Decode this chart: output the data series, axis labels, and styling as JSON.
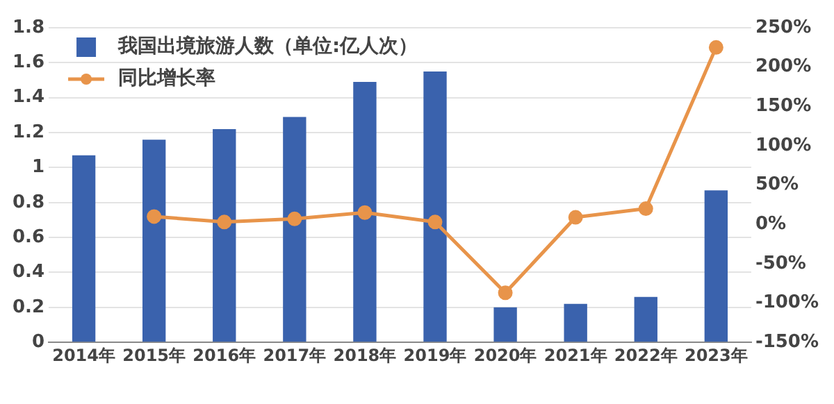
{
  "chart_data": {
    "type": "bar",
    "categories": [
      "2014年",
      "2015年",
      "2016年",
      "2017年",
      "2018年",
      "2019年",
      "2020年",
      "2021年",
      "2022年",
      "2023年"
    ],
    "series": [
      {
        "name": "我国出境旅游人数（单位:亿人次）",
        "color": "#3a62ad",
        "values": [
          1.07,
          1.16,
          1.22,
          1.29,
          1.49,
          1.55,
          0.2,
          0.22,
          0.26,
          0.87
        ]
      },
      {
        "name": "同比增长率",
        "type": "line",
        "axis": "y2",
        "color": "#e8944a",
        "marker": "circle",
        "values": [
          null,
          10,
          3,
          7,
          15,
          3,
          -87,
          9,
          20,
          225
        ]
      }
    ],
    "ylim": [
      0,
      1.8
    ],
    "yticks": [
      0,
      0.2,
      0.4,
      0.6,
      0.8,
      1,
      1.2,
      1.4,
      1.6,
      1.8
    ],
    "y2lim": [
      -150,
      250
    ],
    "y2ticks": [
      {
        "value": -150,
        "label": "-150%"
      },
      {
        "value": -100,
        "label": "-100%"
      },
      {
        "value": -50,
        "label": "-50%"
      },
      {
        "value": 0,
        "label": "0%"
      },
      {
        "value": 50,
        "label": "50%"
      },
      {
        "value": 100,
        "label": "100%"
      },
      {
        "value": 150,
        "label": "150%"
      },
      {
        "value": 200,
        "label": "200%"
      },
      {
        "value": 250,
        "label": "250%"
      }
    ],
    "grid": "y",
    "legend": "top left"
  }
}
